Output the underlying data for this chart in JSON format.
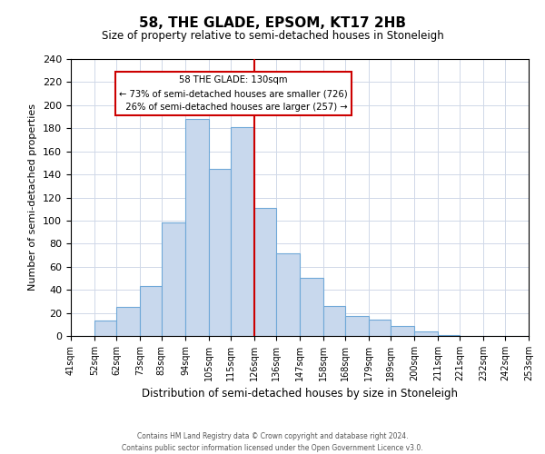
{
  "title": "58, THE GLADE, EPSOM, KT17 2HB",
  "subtitle": "Size of property relative to semi-detached houses in Stoneleigh",
  "xlabel": "Distribution of semi-detached houses by size in Stoneleigh",
  "ylabel": "Number of semi-detached properties",
  "bin_labels": [
    "41sqm",
    "52sqm",
    "62sqm",
    "73sqm",
    "83sqm",
    "94sqm",
    "105sqm",
    "115sqm",
    "126sqm",
    "136sqm",
    "147sqm",
    "158sqm",
    "168sqm",
    "179sqm",
    "189sqm",
    "200sqm",
    "211sqm",
    "221sqm",
    "232sqm",
    "242sqm",
    "253sqm"
  ],
  "bin_edges": [
    41,
    52,
    62,
    73,
    83,
    94,
    105,
    115,
    126,
    136,
    147,
    158,
    168,
    179,
    189,
    200,
    211,
    221,
    232,
    242,
    253
  ],
  "bar_heights": [
    0,
    13,
    25,
    43,
    98,
    188,
    145,
    181,
    111,
    72,
    50,
    26,
    17,
    14,
    9,
    4,
    1,
    0,
    0,
    0,
    1
  ],
  "bar_facecolor": "#c8d8ed",
  "bar_edgecolor": "#6fa8d8",
  "property_line_x": 126,
  "property_line_color": "#cc0000",
  "annotation_line1": "58 THE GLADE: 130sqm",
  "annotation_line2": "← 73% of semi-detached houses are smaller (726)",
  "annotation_line3": "  26% of semi-detached houses are larger (257) →",
  "annotation_box_edgecolor": "#cc0000",
  "annotation_box_facecolor": "#ffffff",
  "ylim": [
    0,
    240
  ],
  "yticks": [
    0,
    20,
    40,
    60,
    80,
    100,
    120,
    140,
    160,
    180,
    200,
    220,
    240
  ],
  "footer_line1": "Contains HM Land Registry data © Crown copyright and database right 2024.",
  "footer_line2": "Contains public sector information licensed under the Open Government Licence v3.0.",
  "background_color": "#ffffff",
  "grid_color": "#d0d8e8"
}
